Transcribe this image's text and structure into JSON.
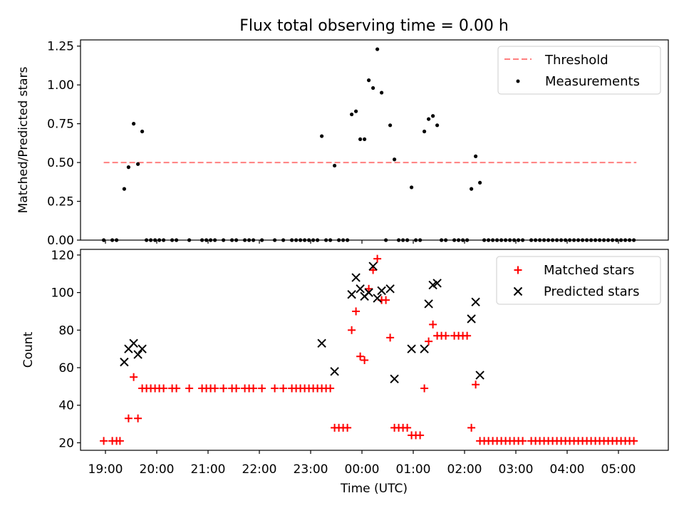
{
  "figure": {
    "title": "Flux total observing time = 0.00 h",
    "xlabel": "Time (UTC)",
    "xtick_labels": [
      "19:00",
      "20:00",
      "21:00",
      "22:00",
      "23:00",
      "00:00",
      "01:00",
      "02:00",
      "03:00",
      "04:00",
      "05:00"
    ]
  },
  "colors": {
    "threshold": "#ff7f7f",
    "measurement": "#000000",
    "matched": "#ff0000",
    "predicted": "#000000"
  },
  "chart_data": [
    {
      "type": "scatter",
      "ylabel": "Matched/Predicted stars",
      "ylim": [
        0,
        1.29
      ],
      "ytick_labels": [
        "0.00",
        "0.25",
        "0.50",
        "0.75",
        "1.00",
        "1.25"
      ],
      "legend": {
        "placement": "top-right",
        "entries": [
          "Threshold",
          "Measurements"
        ]
      },
      "threshold": {
        "name": "Threshold",
        "value": 0.5,
        "x_start": "18:58",
        "x_end": "05:21"
      },
      "series": [
        {
          "name": "Measurements",
          "points": [
            [
              "18:58",
              0
            ],
            [
              "19:08",
              0
            ],
            [
              "19:13",
              0
            ],
            [
              "19:22",
              0.33
            ],
            [
              "19:27",
              0.47
            ],
            [
              "19:33",
              0.75
            ],
            [
              "19:38",
              0.49
            ],
            [
              "19:43",
              0.7
            ],
            [
              "19:48",
              0
            ],
            [
              "19:53",
              0
            ],
            [
              "19:58",
              0
            ],
            [
              "20:03",
              0
            ],
            [
              "20:08",
              0
            ],
            [
              "20:18",
              0
            ],
            [
              "20:23",
              0
            ],
            [
              "20:38",
              0
            ],
            [
              "20:53",
              0
            ],
            [
              "20:58",
              0
            ],
            [
              "21:03",
              0
            ],
            [
              "21:08",
              0
            ],
            [
              "21:18",
              0
            ],
            [
              "21:28",
              0
            ],
            [
              "21:33",
              0
            ],
            [
              "21:43",
              0
            ],
            [
              "21:48",
              0
            ],
            [
              "21:53",
              0
            ],
            [
              "22:03",
              0
            ],
            [
              "22:18",
              0
            ],
            [
              "22:28",
              0
            ],
            [
              "22:38",
              0
            ],
            [
              "22:43",
              0
            ],
            [
              "22:48",
              0
            ],
            [
              "22:53",
              0
            ],
            [
              "22:58",
              0
            ],
            [
              "23:03",
              0
            ],
            [
              "23:08",
              0
            ],
            [
              "23:13",
              0.67
            ],
            [
              "23:18",
              0
            ],
            [
              "23:23",
              0
            ],
            [
              "23:28",
              0.48
            ],
            [
              "23:33",
              0
            ],
            [
              "23:38",
              0
            ],
            [
              "23:43",
              0
            ],
            [
              "23:48",
              0.81
            ],
            [
              "23:53",
              0.83
            ],
            [
              "23:58",
              0.65
            ],
            [
              "00:03",
              0.65
            ],
            [
              "00:08",
              1.03
            ],
            [
              "00:13",
              0.98
            ],
            [
              "00:18",
              1.23
            ],
            [
              "00:23",
              0.95
            ],
            [
              "00:28",
              0
            ],
            [
              "00:33",
              0.74
            ],
            [
              "00:38",
              0.52
            ],
            [
              "00:43",
              0
            ],
            [
              "00:48",
              0
            ],
            [
              "00:53",
              0
            ],
            [
              "00:58",
              0.34
            ],
            [
              "01:03",
              0
            ],
            [
              "01:08",
              0
            ],
            [
              "01:13",
              0.7
            ],
            [
              "01:18",
              0.78
            ],
            [
              "01:23",
              0.8
            ],
            [
              "01:28",
              0.74
            ],
            [
              "01:33",
              0
            ],
            [
              "01:38",
              0
            ],
            [
              "01:48",
              0
            ],
            [
              "01:53",
              0
            ],
            [
              "01:58",
              0
            ],
            [
              "02:03",
              0
            ],
            [
              "02:08",
              0.33
            ],
            [
              "02:13",
              0.54
            ],
            [
              "02:18",
              0.37
            ],
            [
              "02:23",
              0
            ],
            [
              "02:28",
              0
            ],
            [
              "02:33",
              0
            ],
            [
              "02:38",
              0
            ],
            [
              "02:43",
              0
            ],
            [
              "02:48",
              0
            ],
            [
              "02:53",
              0
            ],
            [
              "02:58",
              0
            ],
            [
              "03:03",
              0
            ],
            [
              "03:08",
              0
            ],
            [
              "03:18",
              0
            ],
            [
              "03:23",
              0
            ],
            [
              "03:28",
              0
            ],
            [
              "03:33",
              0
            ],
            [
              "03:38",
              0
            ],
            [
              "03:43",
              0
            ],
            [
              "03:48",
              0
            ],
            [
              "03:53",
              0
            ],
            [
              "03:58",
              0
            ],
            [
              "04:03",
              0
            ],
            [
              "04:08",
              0
            ],
            [
              "04:13",
              0
            ],
            [
              "04:18",
              0
            ],
            [
              "04:23",
              0
            ],
            [
              "04:28",
              0
            ],
            [
              "04:33",
              0
            ],
            [
              "04:38",
              0
            ],
            [
              "04:43",
              0
            ],
            [
              "04:48",
              0
            ],
            [
              "04:53",
              0
            ],
            [
              "04:58",
              0
            ],
            [
              "05:03",
              0
            ],
            [
              "05:08",
              0
            ],
            [
              "05:13",
              0
            ],
            [
              "05:18",
              0
            ]
          ]
        }
      ]
    },
    {
      "type": "scatter",
      "ylabel": "Count",
      "ylim": [
        16,
        123
      ],
      "ytick_labels": [
        "20",
        "40",
        "60",
        "80",
        "100",
        "120"
      ],
      "legend": {
        "placement": "top-right",
        "entries": [
          "Matched stars",
          "Predicted stars"
        ]
      },
      "series": [
        {
          "name": "Matched stars",
          "points": [
            [
              "18:58",
              21
            ],
            [
              "19:08",
              21
            ],
            [
              "19:13",
              21
            ],
            [
              "19:17",
              21
            ],
            [
              "19:27",
              33
            ],
            [
              "19:33",
              55
            ],
            [
              "19:38",
              33
            ],
            [
              "19:43",
              49
            ],
            [
              "19:48",
              49
            ],
            [
              "19:53",
              49
            ],
            [
              "19:58",
              49
            ],
            [
              "20:03",
              49
            ],
            [
              "20:08",
              49
            ],
            [
              "20:18",
              49
            ],
            [
              "20:23",
              49
            ],
            [
              "20:38",
              49
            ],
            [
              "20:53",
              49
            ],
            [
              "20:58",
              49
            ],
            [
              "21:03",
              49
            ],
            [
              "21:08",
              49
            ],
            [
              "21:18",
              49
            ],
            [
              "21:28",
              49
            ],
            [
              "21:33",
              49
            ],
            [
              "21:43",
              49
            ],
            [
              "21:48",
              49
            ],
            [
              "21:53",
              49
            ],
            [
              "22:03",
              49
            ],
            [
              "22:18",
              49
            ],
            [
              "22:28",
              49
            ],
            [
              "22:38",
              49
            ],
            [
              "22:43",
              49
            ],
            [
              "22:48",
              49
            ],
            [
              "22:53",
              49
            ],
            [
              "22:58",
              49
            ],
            [
              "23:03",
              49
            ],
            [
              "23:08",
              49
            ],
            [
              "23:13",
              49
            ],
            [
              "23:18",
              49
            ],
            [
              "23:23",
              49
            ],
            [
              "23:28",
              28
            ],
            [
              "23:33",
              28
            ],
            [
              "23:38",
              28
            ],
            [
              "23:43",
              28
            ],
            [
              "23:48",
              80
            ],
            [
              "23:53",
              90
            ],
            [
              "23:58",
              66
            ],
            [
              "00:03",
              64
            ],
            [
              "00:08",
              102
            ],
            [
              "00:13",
              112
            ],
            [
              "00:18",
              118
            ],
            [
              "00:23",
              96
            ],
            [
              "00:28",
              96
            ],
            [
              "00:33",
              76
            ],
            [
              "00:38",
              28
            ],
            [
              "00:43",
              28
            ],
            [
              "00:48",
              28
            ],
            [
              "00:53",
              28
            ],
            [
              "00:58",
              24
            ],
            [
              "01:03",
              24
            ],
            [
              "01:08",
              24
            ],
            [
              "01:13",
              49
            ],
            [
              "01:18",
              74
            ],
            [
              "01:23",
              83
            ],
            [
              "01:28",
              77
            ],
            [
              "01:33",
              77
            ],
            [
              "01:38",
              77
            ],
            [
              "01:48",
              77
            ],
            [
              "01:53",
              77
            ],
            [
              "01:58",
              77
            ],
            [
              "02:03",
              77
            ],
            [
              "02:08",
              28
            ],
            [
              "02:13",
              51
            ],
            [
              "02:18",
              21
            ],
            [
              "02:23",
              21
            ],
            [
              "02:28",
              21
            ],
            [
              "02:33",
              21
            ],
            [
              "02:38",
              21
            ],
            [
              "02:43",
              21
            ],
            [
              "02:48",
              21
            ],
            [
              "02:53",
              21
            ],
            [
              "02:58",
              21
            ],
            [
              "03:03",
              21
            ],
            [
              "03:08",
              21
            ],
            [
              "03:18",
              21
            ],
            [
              "03:23",
              21
            ],
            [
              "03:28",
              21
            ],
            [
              "03:33",
              21
            ],
            [
              "03:38",
              21
            ],
            [
              "03:43",
              21
            ],
            [
              "03:48",
              21
            ],
            [
              "03:53",
              21
            ],
            [
              "03:58",
              21
            ],
            [
              "04:03",
              21
            ],
            [
              "04:08",
              21
            ],
            [
              "04:13",
              21
            ],
            [
              "04:18",
              21
            ],
            [
              "04:23",
              21
            ],
            [
              "04:28",
              21
            ],
            [
              "04:33",
              21
            ],
            [
              "04:38",
              21
            ],
            [
              "04:43",
              21
            ],
            [
              "04:48",
              21
            ],
            [
              "04:53",
              21
            ],
            [
              "04:58",
              21
            ],
            [
              "05:03",
              21
            ],
            [
              "05:08",
              21
            ],
            [
              "05:13",
              21
            ],
            [
              "05:18",
              21
            ]
          ]
        },
        {
          "name": "Predicted stars",
          "points": [
            [
              "19:22",
              63
            ],
            [
              "19:27",
              70
            ],
            [
              "19:33",
              73
            ],
            [
              "19:38",
              67
            ],
            [
              "19:43",
              70
            ],
            [
              "23:13",
              73
            ],
            [
              "23:28",
              58
            ],
            [
              "23:48",
              99
            ],
            [
              "23:53",
              108
            ],
            [
              "23:58",
              102
            ],
            [
              "00:03",
              98
            ],
            [
              "00:08",
              100
            ],
            [
              "00:13",
              114
            ],
            [
              "00:18",
              97
            ],
            [
              "00:23",
              101
            ],
            [
              "00:33",
              102
            ],
            [
              "00:38",
              54
            ],
            [
              "00:58",
              70
            ],
            [
              "01:13",
              70
            ],
            [
              "01:18",
              94
            ],
            [
              "01:23",
              104
            ],
            [
              "01:28",
              105
            ],
            [
              "02:08",
              86
            ],
            [
              "02:13",
              95
            ],
            [
              "02:18",
              56
            ]
          ]
        }
      ]
    }
  ]
}
